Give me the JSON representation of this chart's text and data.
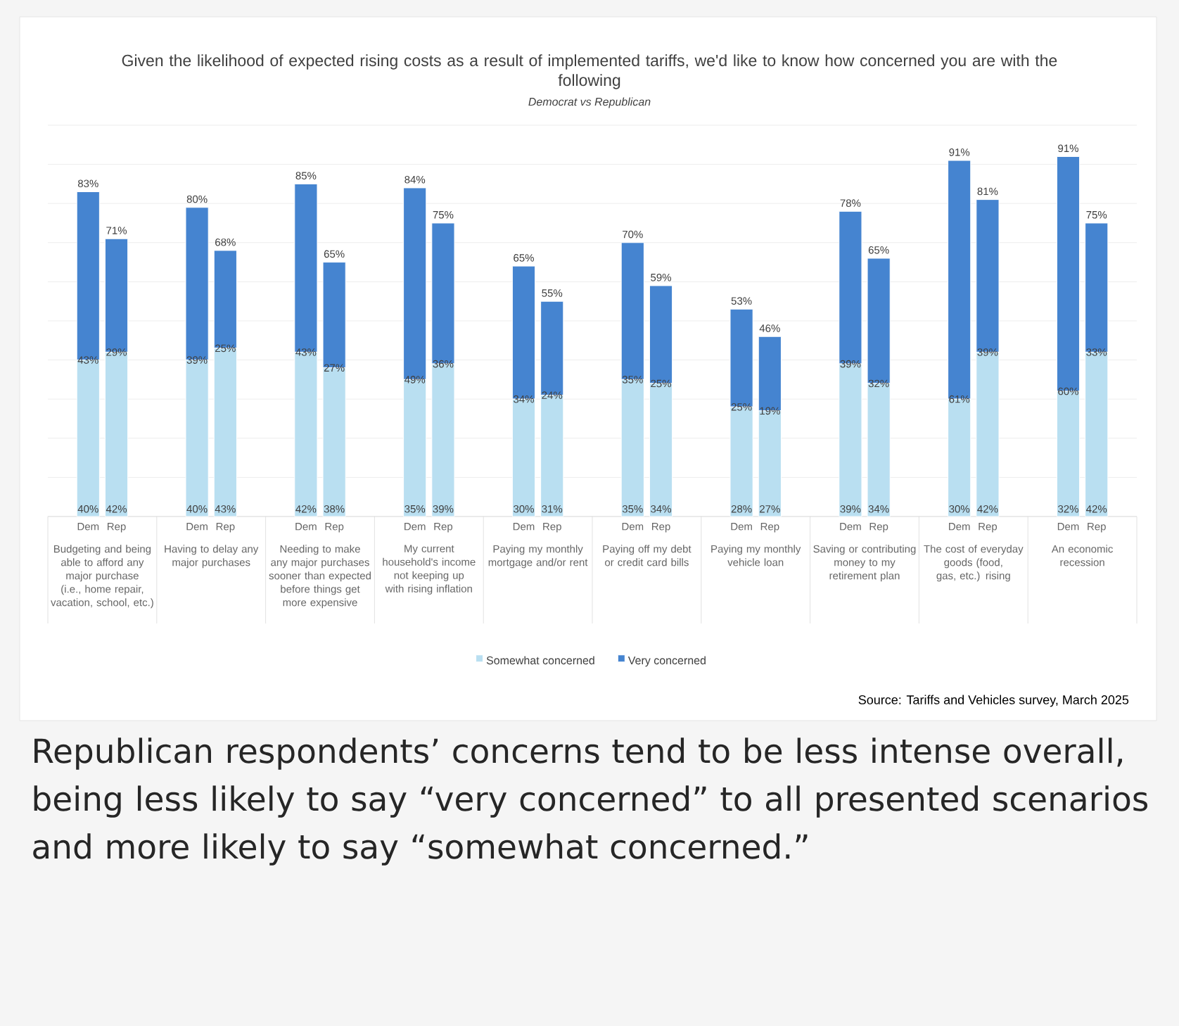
{
  "chart_data": {
    "type": "bar",
    "stacked": true,
    "title": "Given the likelihood of expected rising costs as a result of implemented tariffs, we'd like to know how concerned you are with the following",
    "subtitle": "Democrat vs Republican",
    "categories": [
      "Dem",
      "Rep",
      "Dem",
      "Rep",
      "Dem",
      "Rep",
      "Dem",
      "Rep",
      "Dem",
      "Rep",
      "Dem",
      "Rep",
      "Dem",
      "Rep",
      "Dem",
      "Rep",
      "Dem",
      "Rep",
      "Dem",
      "Rep"
    ],
    "series": [
      {
        "name": "Somewhat concerned",
        "color": "#b9dff1",
        "values": [
          40,
          42,
          40,
          43,
          42,
          38,
          35,
          39,
          30,
          31,
          35,
          34,
          28,
          27,
          39,
          34,
          30,
          42,
          32,
          42
        ],
        "value_labels": [
          "40%",
          "42%",
          "40%",
          "43%",
          "42%",
          "38%",
          "35%",
          "39%",
          "30%",
          "31%",
          "35%",
          "34%",
          "28%",
          "27%",
          "39%",
          "34%",
          "30%",
          "42%",
          "32%",
          "42%"
        ]
      },
      {
        "name": "Very concerned",
        "color": "#4584d0",
        "values": [
          43,
          29,
          39,
          25,
          43,
          27,
          49,
          36,
          34,
          24,
          35,
          25,
          25,
          19,
          39,
          32,
          61,
          39,
          60,
          33
        ],
        "value_labels": [
          "43%",
          "29%",
          "39%",
          "25%",
          "43%",
          "27%",
          "49%",
          "36%",
          "34%",
          "24%",
          "35%",
          "25%",
          "25%",
          "19%",
          "39%",
          "32%",
          "61%",
          "39%",
          "60%",
          "33%"
        ]
      }
    ],
    "totals": [
      "83%",
      "71%",
      "80%",
      "68%",
      "85%",
      "65%",
      "84%",
      "75%",
      "65%",
      "55%",
      "70%",
      "59%",
      "53%",
      "46%",
      "78%",
      "65%",
      "91%",
      "81%",
      "91%",
      "75%"
    ],
    "ylim": [
      0,
      100
    ],
    "yticks": [
      {
        "value": 0,
        "label": null
      },
      {
        "value": 10,
        "label": null
      },
      {
        "value": 20,
        "label": null
      },
      {
        "value": 30,
        "label": null
      },
      {
        "value": 40,
        "label": null
      },
      {
        "value": 50,
        "label": null
      },
      {
        "value": 60,
        "label": null
      },
      {
        "value": 70,
        "label": null
      },
      {
        "value": 80,
        "label": null
      },
      {
        "value": 90,
        "label": null
      },
      {
        "value": 100,
        "label": null
      }
    ],
    "grid": "y",
    "tick_labels": "x",
    "legend": "bottom",
    "annotations": [
      "Budgeting and being able to afford any major purchase (i.e., home repair, vacation, school, etc.)",
      "Having to delay any major purchases",
      "Needing to make any major purchases sooner than expected before things get more expensive",
      "My current household's income not keeping up with rising inflation",
      "Paying my monthly mortgage and/or rent",
      "Paying off my debt or credit card bills",
      "Paying my monthly vehicle loan",
      "Saving or contributing money to my retirement plan",
      "The cost of everyday goods (food, gas, etc.) rising",
      "An economic recession",
      "Source: Tariffs and Vehicles survey, March 2025",
      "Republican respondents’ concerns tend to be less intense overall, being less likely to say “very concerned” to all presented scenarios and more likely to say “somewhat concerned.”"
    ]
  }
}
